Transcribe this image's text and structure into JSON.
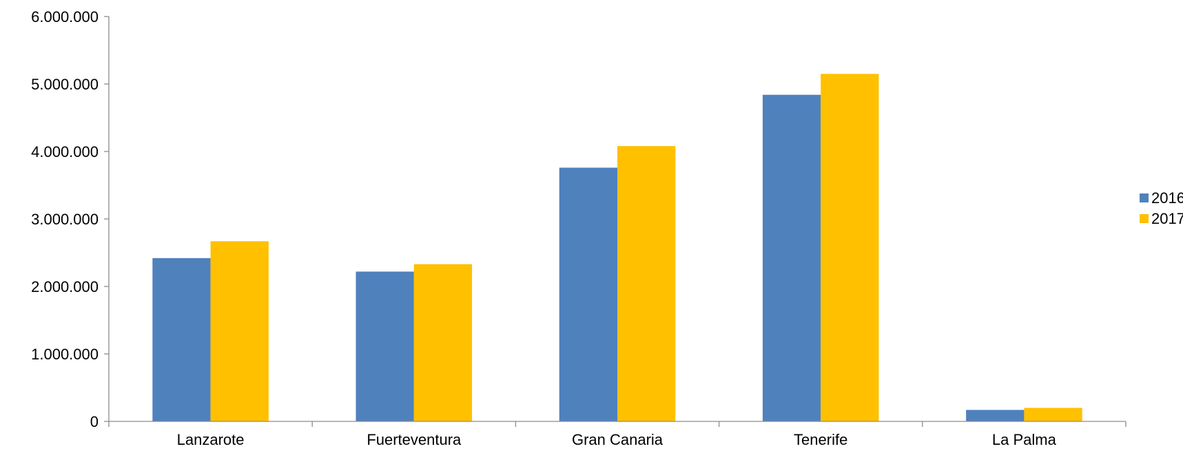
{
  "chart_data": {
    "type": "bar",
    "title": "",
    "xlabel": "",
    "ylabel": "",
    "categories": [
      "Lanzarote",
      "Fuerteventura",
      "Gran Canaria",
      "Tenerife",
      "La Palma"
    ],
    "series": [
      {
        "name": "2016",
        "color": "#4f81bd",
        "values": [
          2420000,
          2220000,
          3760000,
          4840000,
          170000
        ]
      },
      {
        "name": "2017",
        "color": "#ffc000",
        "values": [
          2670000,
          2330000,
          4080000,
          5150000,
          200000
        ]
      }
    ],
    "ylim": [
      0,
      6000000
    ],
    "yticks": [
      0,
      1000000,
      2000000,
      3000000,
      4000000,
      5000000,
      6000000
    ],
    "ytick_labels": [
      "0",
      "1.000.000",
      "2.000.000",
      "3.000.000",
      "4.000.000",
      "5.000.000",
      "6.000.000"
    ],
    "grid": false,
    "legend_position": "right"
  }
}
